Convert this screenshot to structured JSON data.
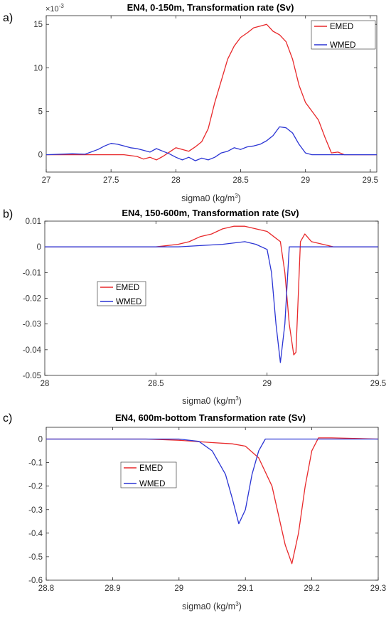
{
  "chart_data": [
    {
      "type": "line",
      "panel": "a)",
      "title": "EN4, 0-150m, Transformation rate (Sv)",
      "xlabel": "sigma0 (kg/m",
      "xlabel_sup": "3",
      "xlabel_end": ")",
      "exponent_label": "×10",
      "exponent_sup": "-3",
      "xlim": [
        27,
        29.55
      ],
      "ylim": [
        -2,
        16
      ],
      "xticks": [
        27,
        27.5,
        28,
        28.5,
        29,
        29.5
      ],
      "xtick_labels": [
        "27",
        "27.5",
        "28",
        "28.5",
        "29",
        "29.5"
      ],
      "yticks": [
        0,
        5,
        10,
        15
      ],
      "ytick_labels": [
        "0",
        "5",
        "10",
        "15"
      ],
      "legend": "top-right",
      "series": [
        {
          "name": "EMED",
          "color": "#e8292b",
          "x": [
            27,
            27.3,
            27.6,
            27.7,
            27.75,
            27.8,
            27.85,
            27.9,
            27.95,
            28.0,
            28.05,
            28.1,
            28.15,
            28.2,
            28.25,
            28.3,
            28.35,
            28.4,
            28.45,
            28.5,
            28.55,
            28.6,
            28.65,
            28.7,
            28.75,
            28.8,
            28.85,
            28.9,
            28.95,
            29.0,
            29.05,
            29.1,
            29.15,
            29.2,
            29.25,
            29.3,
            29.4,
            29.55
          ],
          "y": [
            0,
            0,
            0,
            -0.2,
            -0.5,
            -0.3,
            -0.6,
            -0.2,
            0.3,
            0.8,
            0.6,
            0.4,
            0.9,
            1.5,
            3.0,
            6.0,
            8.5,
            11.0,
            12.5,
            13.5,
            14.0,
            14.6,
            14.8,
            15.0,
            14.2,
            13.8,
            13.0,
            11.0,
            8.0,
            6.0,
            5.0,
            4.0,
            2.0,
            0.2,
            0.3,
            0,
            0,
            0
          ]
        },
        {
          "name": "WMED",
          "color": "#2b35d4",
          "x": [
            27,
            27.2,
            27.3,
            27.4,
            27.45,
            27.5,
            27.55,
            27.6,
            27.65,
            27.7,
            27.75,
            27.8,
            27.85,
            27.9,
            27.95,
            28.0,
            28.05,
            28.1,
            28.15,
            28.2,
            28.25,
            28.3,
            28.35,
            28.4,
            28.45,
            28.5,
            28.55,
            28.6,
            28.65,
            28.7,
            28.75,
            28.8,
            28.85,
            28.9,
            28.95,
            29.0,
            29.05,
            29.1,
            29.2,
            29.3,
            29.4,
            29.55
          ],
          "y": [
            0,
            0.1,
            0.05,
            0.6,
            1.0,
            1.3,
            1.2,
            1.0,
            0.8,
            0.7,
            0.5,
            0.3,
            0.7,
            0.4,
            0.1,
            -0.3,
            -0.6,
            -0.3,
            -0.7,
            -0.4,
            -0.6,
            -0.3,
            0.2,
            0.4,
            0.8,
            0.6,
            0.9,
            1.0,
            1.2,
            1.6,
            2.2,
            3.2,
            3.1,
            2.5,
            1.2,
            0.2,
            0,
            0,
            0,
            0,
            0,
            0
          ]
        }
      ]
    },
    {
      "type": "line",
      "panel": "b)",
      "title": "EN4, 150-600m, Transformation rate (Sv)",
      "xlabel": "sigma0 (kg/m",
      "xlabel_sup": "3",
      "xlabel_end": ")",
      "xlim": [
        28,
        29.5
      ],
      "ylim": [
        -0.05,
        0.01
      ],
      "xticks": [
        28,
        28.5,
        29,
        29.5
      ],
      "xtick_labels": [
        "28",
        "28.5",
        "29",
        "29.5"
      ],
      "yticks": [
        0.01,
        0,
        -0.01,
        -0.02,
        -0.03,
        -0.04,
        -0.05
      ],
      "ytick_labels": [
        "0.01",
        "0",
        "-0.01",
        "-0.02",
        "-0.03",
        "-0.04",
        "-0.05"
      ],
      "legend": "center-left",
      "series": [
        {
          "name": "EMED",
          "color": "#e8292b",
          "x": [
            28.0,
            28.5,
            28.6,
            28.65,
            28.7,
            28.75,
            28.8,
            28.85,
            28.9,
            28.95,
            29.0,
            29.03,
            29.06,
            29.08,
            29.1,
            29.12,
            29.13,
            29.14,
            29.15,
            29.17,
            29.2,
            29.3,
            29.5
          ],
          "y": [
            0,
            0,
            0.001,
            0.002,
            0.004,
            0.005,
            0.007,
            0.008,
            0.008,
            0.007,
            0.006,
            0.004,
            0.002,
            -0.01,
            -0.03,
            -0.042,
            -0.041,
            -0.02,
            0.002,
            0.005,
            0.002,
            0,
            0
          ]
        },
        {
          "name": "WMED",
          "color": "#2b35d4",
          "x": [
            28.0,
            28.6,
            28.7,
            28.8,
            28.9,
            28.95,
            29.0,
            29.02,
            29.04,
            29.06,
            29.08,
            29.1,
            29.2,
            29.5
          ],
          "y": [
            0,
            0,
            0.0005,
            0.001,
            0.002,
            0.001,
            -0.001,
            -0.01,
            -0.03,
            -0.045,
            -0.03,
            0,
            0,
            0
          ]
        }
      ]
    },
    {
      "type": "line",
      "panel": "c)",
      "title": "EN4, 600m-bottom Transformation rate (Sv)",
      "xlabel": "sigma0 (kg/m",
      "xlabel_sup": "3",
      "xlabel_end": ")",
      "xlim": [
        28.8,
        29.3
      ],
      "ylim": [
        -0.6,
        0.05
      ],
      "xticks": [
        28.8,
        28.9,
        29.0,
        29.1,
        29.2,
        29.3
      ],
      "xtick_labels": [
        "28.8",
        "28.9",
        "29",
        "29.1",
        "29.2",
        "29.3"
      ],
      "yticks": [
        0,
        -0.1,
        -0.2,
        -0.3,
        -0.4,
        -0.5,
        -0.6
      ],
      "ytick_labels": [
        "0",
        "-0.1",
        "-0.2",
        "-0.3",
        "-0.4",
        "-0.5",
        "-0.6"
      ],
      "legend": "center-left",
      "series": [
        {
          "name": "EMED",
          "color": "#e8292b",
          "x": [
            28.8,
            28.95,
            29.0,
            29.05,
            29.08,
            29.1,
            29.12,
            29.14,
            29.16,
            29.17,
            29.18,
            29.19,
            29.2,
            29.21,
            29.23,
            29.3
          ],
          "y": [
            0,
            0,
            -0.005,
            -0.015,
            -0.02,
            -0.03,
            -0.08,
            -0.2,
            -0.45,
            -0.53,
            -0.4,
            -0.2,
            -0.05,
            0.005,
            0.005,
            0
          ]
        },
        {
          "name": "WMED",
          "color": "#2b35d4",
          "x": [
            28.8,
            29.0,
            29.03,
            29.05,
            29.07,
            29.08,
            29.09,
            29.1,
            29.11,
            29.12,
            29.13,
            29.2,
            29.3
          ],
          "y": [
            0,
            0,
            -0.01,
            -0.05,
            -0.15,
            -0.25,
            -0.36,
            -0.3,
            -0.15,
            -0.05,
            0,
            0,
            0
          ]
        }
      ]
    }
  ]
}
